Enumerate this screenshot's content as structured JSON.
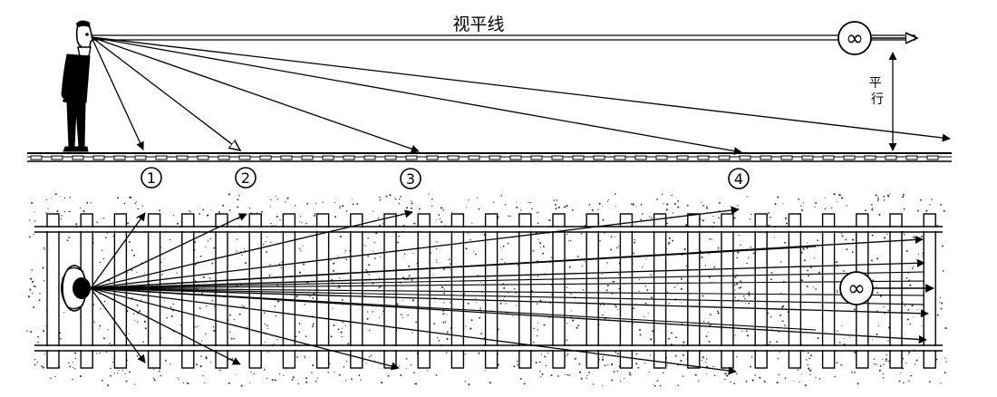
{
  "labels": {
    "horizon_line": "视平线",
    "parallel": "平行",
    "infinity": "∞",
    "infinity_plan": "∞"
  },
  "markers": [
    {
      "num": "1"
    },
    {
      "num": "2"
    },
    {
      "num": "3"
    },
    {
      "num": "4"
    }
  ],
  "colors": {
    "ink": "#000000",
    "paper": "#ffffff",
    "gravel": "#333333"
  }
}
